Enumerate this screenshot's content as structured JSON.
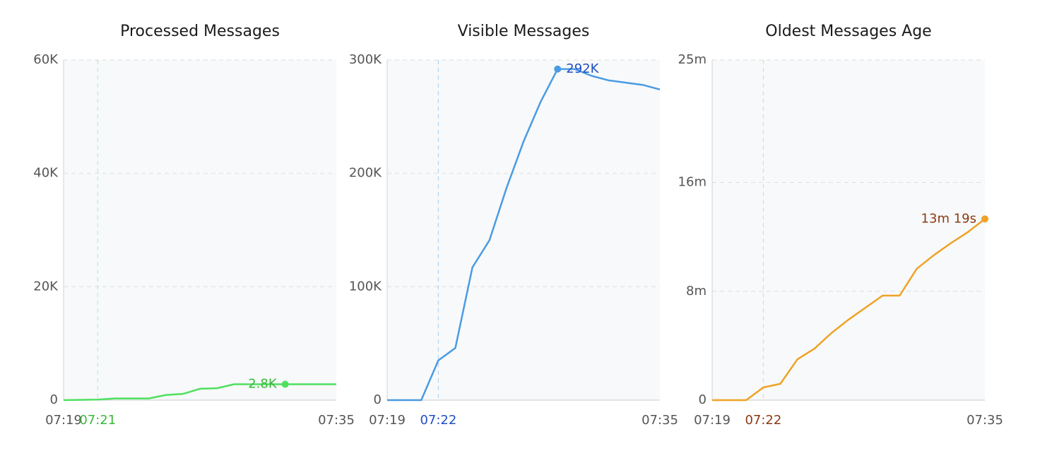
{
  "chart_data": [
    {
      "type": "line",
      "title": "Processed Messages",
      "color": "#4fe05f",
      "label_color": "#38b838",
      "x": [
        "07:19",
        "07:20",
        "07:21",
        "07:22",
        "07:23",
        "07:24",
        "07:25",
        "07:26",
        "07:27",
        "07:28",
        "07:29",
        "07:30",
        "07:31",
        "07:32",
        "07:33",
        "07:34",
        "07:35"
      ],
      "values": [
        0,
        50,
        100,
        300,
        300,
        300,
        900,
        1100,
        2000,
        2100,
        2800,
        2800,
        2800,
        2800,
        2800,
        2800,
        2800
      ],
      "value_labels": [
        null,
        null,
        null,
        null,
        null,
        null,
        null,
        null,
        null,
        null,
        null,
        null,
        null,
        "2.8K",
        null,
        null,
        null
      ],
      "ylim": [
        0,
        60000
      ],
      "yticks": [
        0,
        {
          "value": 20000,
          "label": "20K"
        },
        {
          "value": 40000,
          "label": "40K"
        },
        {
          "value": 60000,
          "label": "60K"
        }
      ],
      "xticks": [
        "07:19",
        "07:35"
      ],
      "highlight": "07:21",
      "grid": true
    },
    {
      "type": "line",
      "title": "Visible Messages",
      "color": "#4a9be3",
      "label_color": "#1f4fc4",
      "x": [
        "07:19",
        "07:20",
        "07:21",
        "07:22",
        "07:23",
        "07:24",
        "07:25",
        "07:26",
        "07:27",
        "07:28",
        "07:29",
        "07:30",
        "07:31",
        "07:32",
        "07:33",
        "07:34",
        "07:35"
      ],
      "values": [
        0,
        0,
        0,
        35000,
        46000,
        117000,
        141000,
        187000,
        228000,
        263000,
        292000,
        292000,
        286000,
        282000,
        280000,
        278000,
        274000
      ],
      "value_labels": [
        null,
        null,
        null,
        null,
        null,
        null,
        null,
        null,
        null,
        null,
        "292K",
        null,
        null,
        null,
        null,
        null,
        null
      ],
      "ylim": [
        0,
        300000
      ],
      "yticks": [
        0,
        {
          "value": 100000,
          "label": "100K"
        },
        {
          "value": 200000,
          "label": "200K"
        },
        {
          "value": 300000,
          "label": "300K"
        }
      ],
      "xticks": [
        "07:19",
        "07:35"
      ],
      "highlight": "07:22",
      "grid": true
    },
    {
      "type": "line",
      "title": "Oldest Messages Age",
      "color": "#f0a224",
      "label_color": "#8a3a12",
      "x": [
        "07:19",
        "07:20",
        "07:21",
        "07:22",
        "07:23",
        "07:24",
        "07:25",
        "07:26",
        "07:27",
        "07:28",
        "07:29",
        "07:30",
        "07:31",
        "07:32",
        "07:33",
        "07:34",
        "07:35"
      ],
      "values": [
        0,
        0,
        0,
        56,
        72,
        180,
        227,
        296,
        355,
        408,
        461,
        461,
        579,
        639,
        692,
        741,
        799
      ],
      "value_labels": [
        null,
        null,
        null,
        null,
        null,
        null,
        null,
        null,
        null,
        null,
        null,
        null,
        null,
        null,
        null,
        null,
        "13m 19s"
      ],
      "ylim": [
        0,
        1500
      ],
      "yticks": [
        0,
        {
          "value": 480,
          "label": "8m"
        },
        {
          "value": 960,
          "label": "16m"
        },
        {
          "value": 1500,
          "label": "25m"
        }
      ],
      "xticks": [
        "07:19",
        "07:35"
      ],
      "highlight": "07:22",
      "grid": true
    }
  ]
}
